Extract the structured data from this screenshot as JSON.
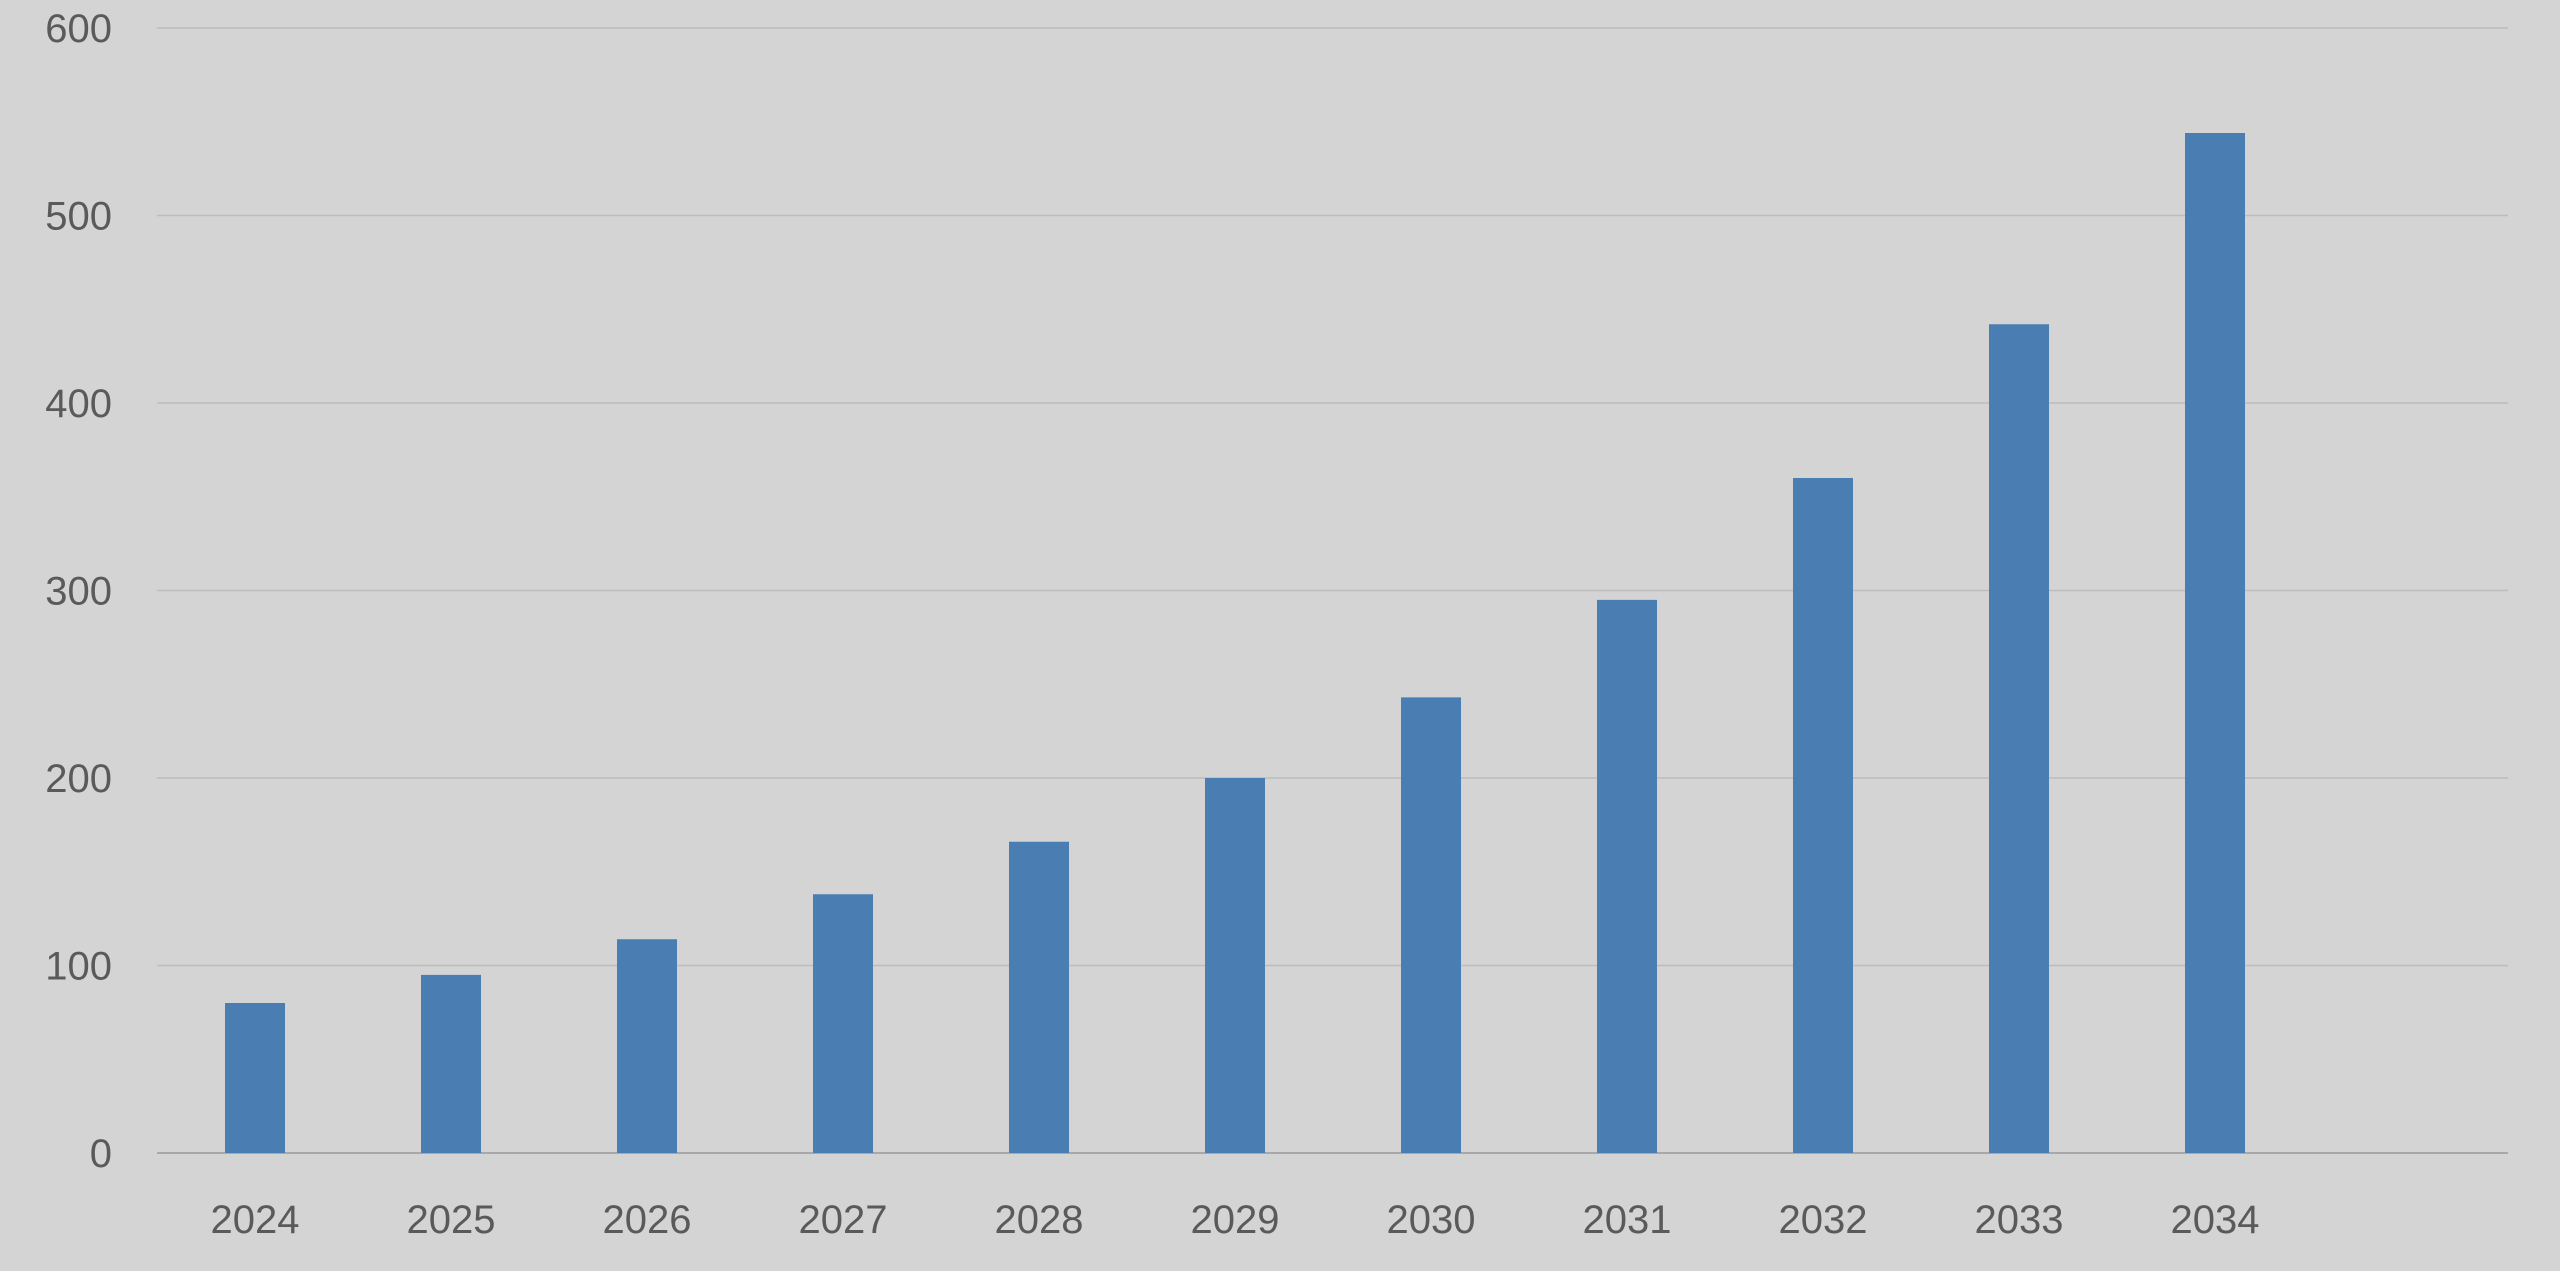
{
  "chart_data": {
    "type": "bar",
    "categories": [
      "2024",
      "2025",
      "2026",
      "2027",
      "2028",
      "2029",
      "2030",
      "2031",
      "2032",
      "2033",
      "2034"
    ],
    "values": [
      80,
      95,
      114,
      138,
      166,
      200,
      243,
      295,
      360,
      442,
      544
    ],
    "title": "",
    "xlabel": "",
    "ylabel": "",
    "ylim": [
      0,
      600
    ],
    "yticks": [
      "0",
      "100",
      "200",
      "300",
      "400",
      "500",
      "600"
    ],
    "grid": "horizontal",
    "legend": "none",
    "colors": {
      "bar": "#4a7db1",
      "gridline": "#bcbcbc",
      "baseline": "#a8a8a8",
      "background": "#d4d4d4",
      "text": "#5a5a5a"
    }
  }
}
